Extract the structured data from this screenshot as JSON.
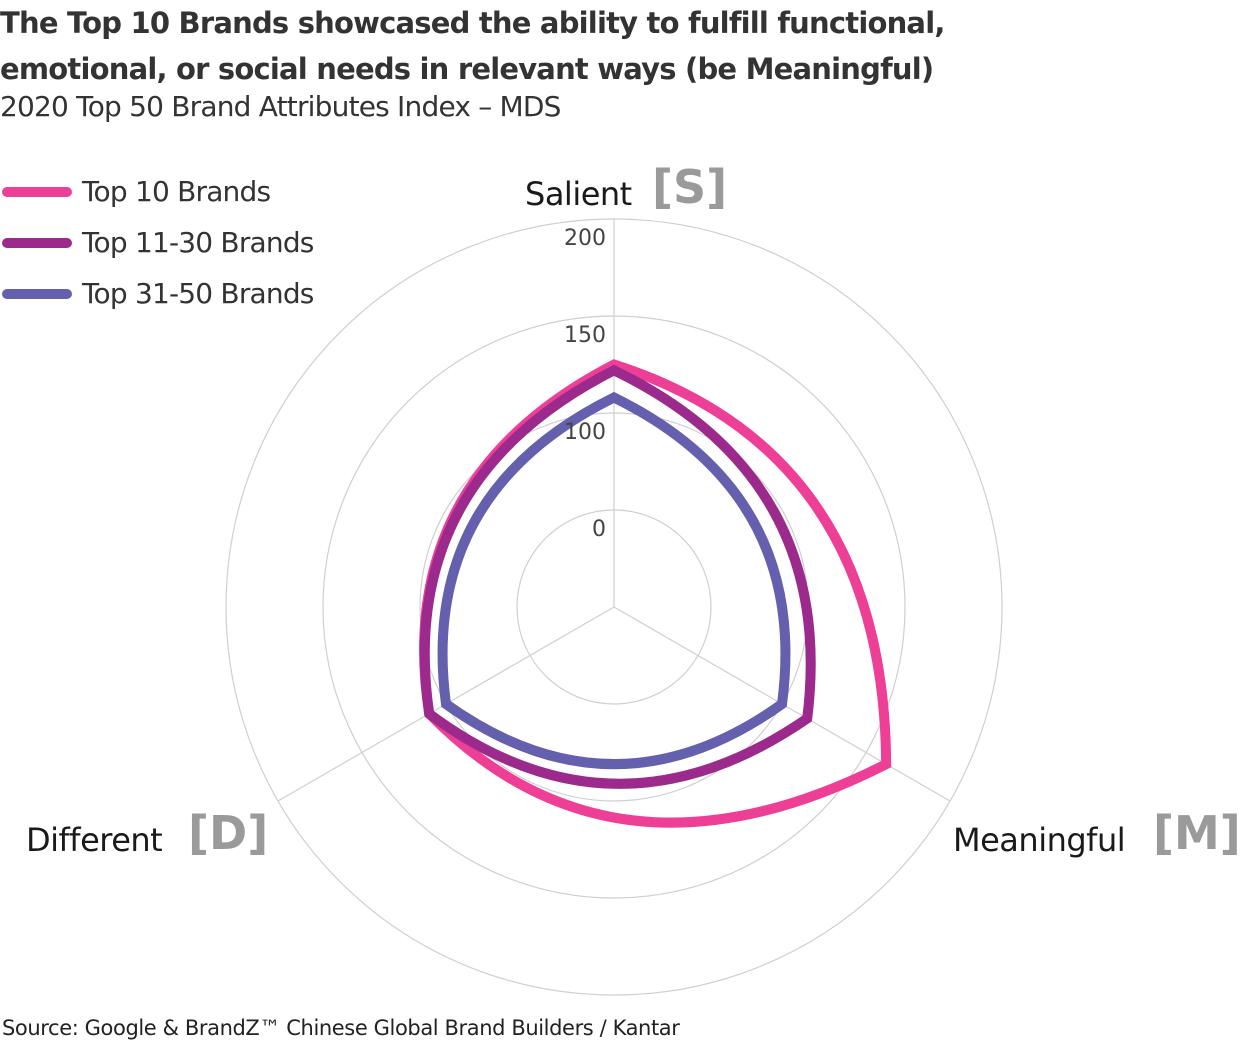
{
  "chart_data": {
    "type": "radar",
    "title": "The Top 10 Brands showcased the ability to fulfill functional, emotional, or social needs in relevant ways (be Meaningful)",
    "subtitle": "2020 Top 50 Brand Attributes Index – MDS",
    "axes": [
      {
        "label": "Salient",
        "badge": "[S]"
      },
      {
        "label": "Meaningful",
        "badge": "[M]"
      },
      {
        "label": "Different",
        "badge": "[D]"
      }
    ],
    "ring_ticks": [
      "0",
      "100",
      "150",
      "200"
    ],
    "ring_values": [
      0,
      100,
      150,
      200
    ],
    "series": [
      {
        "name": "Top 10 Brands",
        "color": "#EE3F97",
        "values": [
          125,
          162,
          110
        ]
      },
      {
        "name": "Top 11-30 Brands",
        "color": "#9B2A8C",
        "values": [
          122,
          115,
          110
        ]
      },
      {
        "name": "Top 31-50 Brands",
        "color": "#6460AE",
        "values": [
          108,
          100,
          100
        ]
      }
    ],
    "legend_position": "top-left",
    "grid": true
  },
  "source": "Source: Google & BrandZ™ Chinese Global Brand Builders / Kantar"
}
